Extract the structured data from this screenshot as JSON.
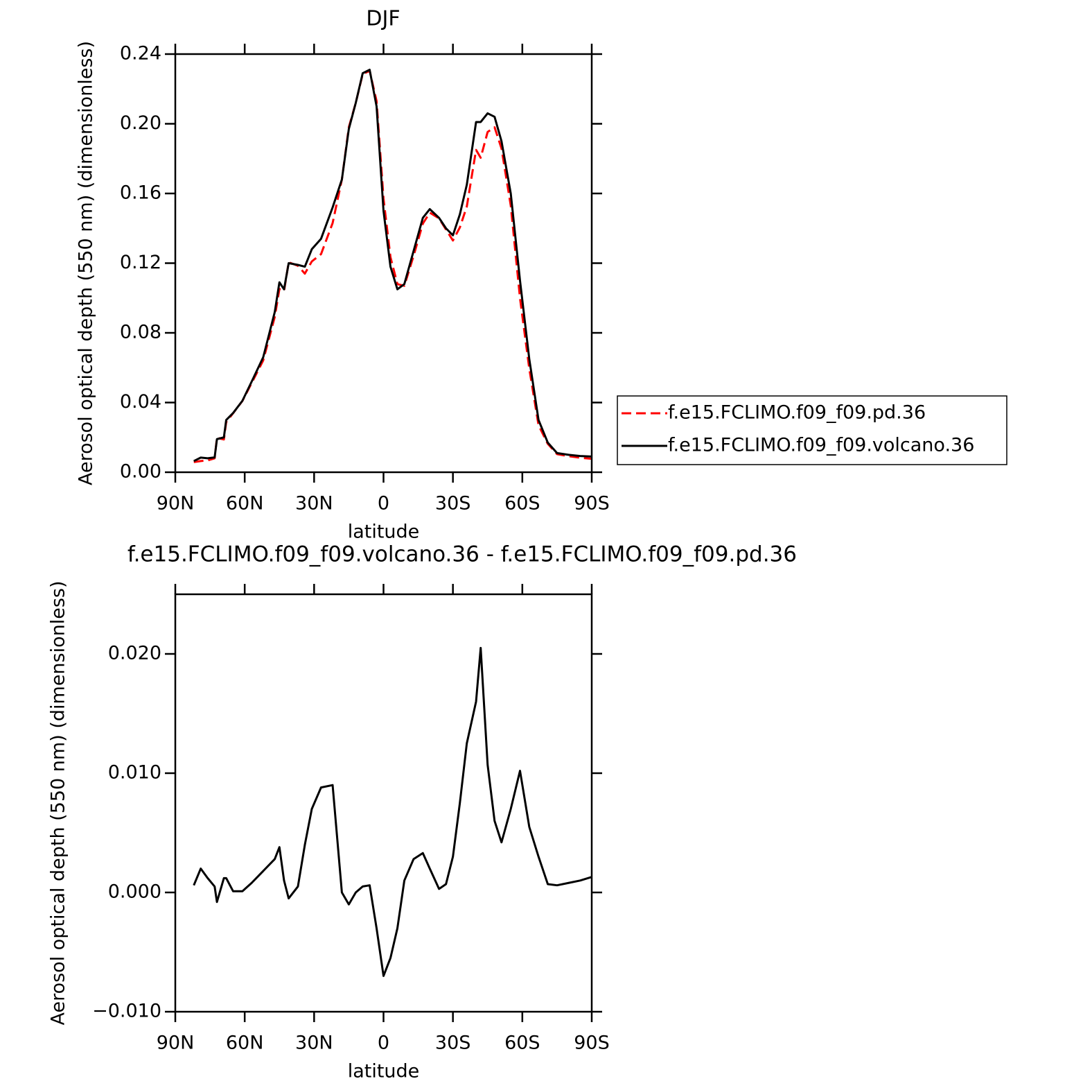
{
  "chart_data": [
    {
      "type": "line",
      "title": "DJF",
      "xlabel": "latitude",
      "ylabel": "Aerosol optical depth (550 nm) (dimensionless)",
      "x": [
        82,
        79,
        76,
        73,
        72,
        69,
        68,
        65,
        61,
        57,
        52,
        47,
        45,
        43,
        41,
        37,
        34,
        31,
        27,
        22,
        18,
        15,
        12,
        9,
        6,
        3,
        0,
        -3,
        -6,
        -9,
        -13,
        -17,
        -20,
        -24,
        -27,
        -30,
        -33,
        -36,
        -40,
        -42,
        -45,
        -48,
        -51,
        -55,
        -59,
        -63,
        -67,
        -71,
        -75,
        -80,
        -85,
        -90
      ],
      "xlim": [
        90,
        -90
      ],
      "xticks": [
        {
          "value": 90,
          "label": "90N"
        },
        {
          "value": 60,
          "label": "60N"
        },
        {
          "value": 30,
          "label": "30N"
        },
        0,
        {
          "value": -30,
          "label": "30S"
        },
        {
          "value": -60,
          "label": "60S"
        },
        {
          "value": -90,
          "label": "90S"
        }
      ],
      "ylim": [
        0,
        0.24
      ],
      "yticks": [
        {
          "value": 0,
          "label": "0.00"
        },
        0.04,
        0.08,
        0.12,
        0.16,
        {
          "value": 0.2,
          "label": "0.20"
        },
        0.24
      ],
      "legend": "right",
      "series": [
        {
          "name": "f.e15.FCLIMO.f09_f09.pd.36",
          "color": "#ff0000",
          "linestyle": "dashed",
          "values": [
            0.0058,
            0.0064,
            0.0068,
            0.008,
            0.0198,
            0.0188,
            0.0288,
            0.0339,
            0.0409,
            0.0512,
            0.0642,
            0.0892,
            0.1052,
            0.104,
            0.1205,
            0.1185,
            0.114,
            0.121,
            0.1252,
            0.143,
            0.168,
            0.198,
            0.212,
            0.2285,
            0.2304,
            0.213,
            0.157,
            0.1235,
            0.108,
            0.107,
            0.1242,
            0.1427,
            0.149,
            0.1457,
            0.1393,
            0.133,
            0.1405,
            0.1525,
            0.185,
            0.1805,
            0.1953,
            0.198,
            0.1858,
            0.153,
            0.0998,
            0.0595,
            0.027,
            0.0163,
            0.0104,
            0.0092,
            0.0083,
            0.0077
          ]
        },
        {
          "name": "f.e15.FCLIMO.f09_f09.volcano.36",
          "color": "#000000",
          "linestyle": "solid",
          "values": [
            0.0064,
            0.0084,
            0.008,
            0.0085,
            0.019,
            0.02,
            0.03,
            0.034,
            0.041,
            0.052,
            0.066,
            0.092,
            0.109,
            0.105,
            0.12,
            0.119,
            0.118,
            0.128,
            0.134,
            0.152,
            0.168,
            0.197,
            0.212,
            0.229,
            0.231,
            0.21,
            0.15,
            0.118,
            0.105,
            0.108,
            0.127,
            0.146,
            0.151,
            0.146,
            0.14,
            0.136,
            0.148,
            0.165,
            0.201,
            0.201,
            0.206,
            0.204,
            0.19,
            0.16,
            0.11,
            0.065,
            0.03,
            0.017,
            0.011,
            0.01,
            0.0093,
            0.009
          ]
        }
      ]
    },
    {
      "type": "line",
      "title": "f.e15.FCLIMO.f09_f09.volcano.36 - f.e15.FCLIMO.f09_f09.pd.36",
      "xlabel": "latitude",
      "ylabel": "Aerosol optical depth (550 nm) (dimensionless)",
      "x": [
        82,
        79,
        76,
        73,
        72,
        69,
        68,
        65,
        61,
        57,
        52,
        47,
        45,
        43,
        41,
        37,
        34,
        31,
        27,
        22,
        18,
        15,
        12,
        9,
        6,
        3,
        0,
        -3,
        -6,
        -9,
        -13,
        -17,
        -20,
        -24,
        -27,
        -30,
        -33,
        -36,
        -40,
        -42,
        -45,
        -48,
        -51,
        -55,
        -59,
        -63,
        -67,
        -71,
        -75,
        -80,
        -85,
        -90
      ],
      "xlim": [
        90,
        -90
      ],
      "xticks": [
        {
          "value": 90,
          "label": "90N"
        },
        {
          "value": 60,
          "label": "60N"
        },
        {
          "value": 30,
          "label": "30N"
        },
        0,
        {
          "value": -30,
          "label": "30S"
        },
        {
          "value": -60,
          "label": "60S"
        },
        {
          "value": -90,
          "label": "90S"
        }
      ],
      "ylim": [
        -0.01,
        0.025
      ],
      "yticks": [
        {
          "value": -0.01,
          "label": "−0.010"
        },
        {
          "value": 0,
          "label": "0.000"
        },
        {
          "value": 0.01,
          "label": "0.010"
        },
        {
          "value": 0.02,
          "label": "0.020"
        }
      ],
      "color": "#000000",
      "values": [
        0.0006,
        0.002,
        0.0012,
        0.0005,
        -0.0008,
        0.0012,
        0.0012,
        0.0001,
        0.0001,
        0.0008,
        0.0018,
        0.0028,
        0.0038,
        0.001,
        -0.0005,
        0.0005,
        0.004,
        0.007,
        0.0088,
        0.009,
        0,
        -0.001,
        0,
        0.0005,
        0.0006,
        -0.003,
        -0.007,
        -0.0055,
        -0.003,
        0.001,
        0.0028,
        0.0033,
        0.002,
        0.0003,
        0.0007,
        0.003,
        0.0075,
        0.0125,
        0.016,
        0.0205,
        0.0107,
        0.006,
        0.0042,
        0.007,
        0.0102,
        0.0055,
        0.003,
        0.0007,
        0.0006,
        0.0008,
        0.001,
        0.0013
      ]
    }
  ]
}
